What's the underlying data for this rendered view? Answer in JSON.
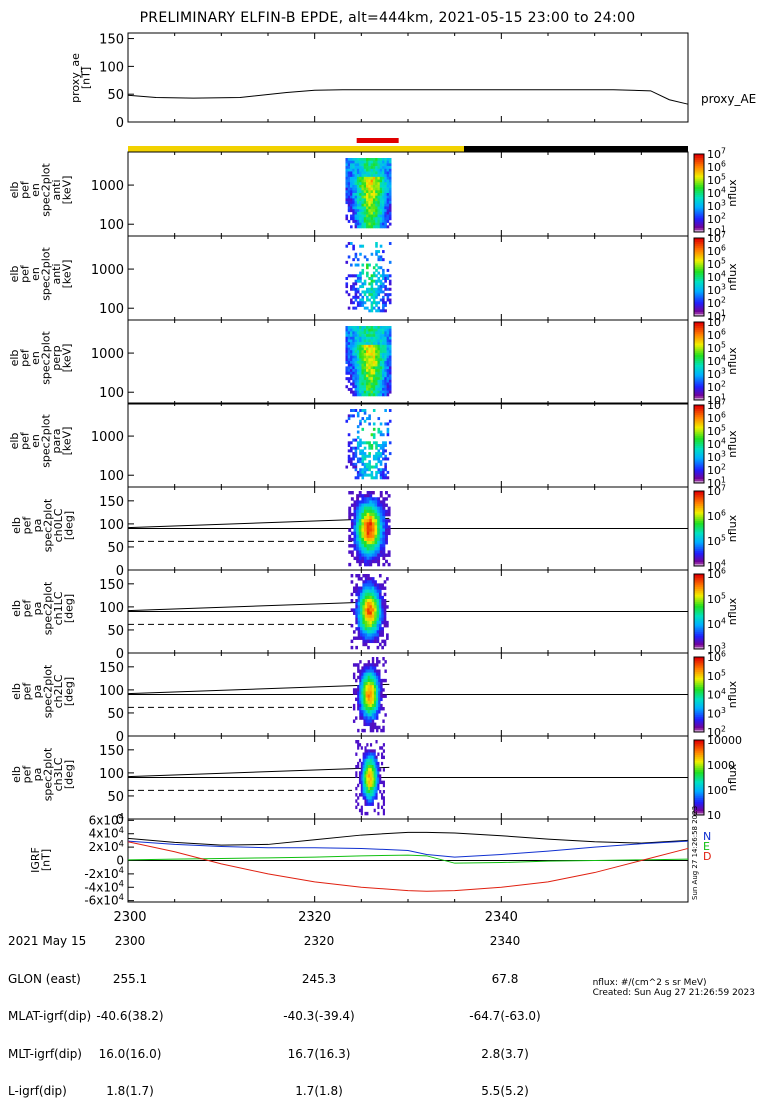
{
  "header": {
    "title": "PRELIMINARY ELFIN-B EPDE, alt=444km, 2021-05-15 23:00 to 24:00"
  },
  "chart_data": {
    "type": "heatmap",
    "x_tick_labels": [
      "2300",
      "2320",
      "2340"
    ],
    "colors": {
      "orbit_day": "#f2d200",
      "orbit_night": "#000000",
      "science_zone": "#e00000",
      "grf_x": "#1030d0",
      "grf_y": "#10c010",
      "grf_z": "#e02010",
      "grf_total": "#000000"
    },
    "ae_panel": {
      "ylabel": "proxy_ae\n[nT]",
      "yticks": [
        "150",
        "100",
        "50",
        "0"
      ],
      "ylim": [
        0,
        160
      ],
      "series_label": "proxy_AE",
      "x_minutes": [
        0,
        3,
        7,
        12,
        17,
        20,
        23,
        30,
        40,
        50,
        52,
        56,
        58,
        60
      ],
      "values": [
        48,
        44,
        43,
        44,
        53,
        57,
        58,
        58,
        58,
        58,
        58,
        56,
        40,
        32
      ]
    },
    "spectra_panels": [
      {
        "ylabel": "elb\npef\nen\nspec2plot\nanti\n[keV]",
        "yticks": [
          "1000",
          "100"
        ],
        "cbar_ticks": [
          "10^7",
          "10^6",
          "10^5",
          "10^4",
          "10^3",
          "10^2",
          "10^1"
        ],
        "cbar_label": "nflux"
      },
      {
        "ylabel": "elb\npef\nen\nspec2plot\nanti\n[keV]",
        "yticks": [
          "1000",
          "100"
        ],
        "cbar_ticks": [
          "10^7",
          "10^6",
          "10^5",
          "10^4",
          "10^3",
          "10^2",
          "10^1"
        ],
        "cbar_label": "nflux"
      },
      {
        "ylabel": "elb\npef\nen\nspec2plot\nperp\n[keV]",
        "yticks": [
          "1000",
          "100"
        ],
        "cbar_ticks": [
          "10^7",
          "10^6",
          "10^5",
          "10^4",
          "10^3",
          "10^2",
          "10^1"
        ],
        "cbar_label": "nflux"
      },
      {
        "ylabel": "elb\npef\nen\nspec2plot\npara\n[keV]",
        "yticks": [
          "1000",
          "100"
        ],
        "cbar_ticks": [
          "10^7",
          "10^6",
          "10^5",
          "10^4",
          "10^3",
          "10^2",
          "10^1"
        ],
        "cbar_label": "nflux"
      }
    ],
    "pa_panels": [
      {
        "ylabel": "elb\npef\npa\nspec2plot\nch0LC\n[deg]",
        "yticks": [
          "150",
          "100",
          "50",
          "0"
        ],
        "cbar_ticks": [
          "10^7",
          "10^6",
          "10^5",
          "10^4"
        ],
        "cbar_label": "nflux"
      },
      {
        "ylabel": "elb\npef\npa\nspec2plot\nch1LC\n[deg]",
        "yticks": [
          "150",
          "100",
          "50",
          "0"
        ],
        "cbar_ticks": [
          "10^6",
          "10^5",
          "10^4",
          "10^3"
        ],
        "cbar_label": "nflux"
      },
      {
        "ylabel": "elb\npef\npa\nspec2plot\nch2LC\n[deg]",
        "yticks": [
          "150",
          "100",
          "50",
          "0"
        ],
        "cbar_ticks": [
          "10^6",
          "10^5",
          "10^4",
          "10^3",
          "10^2"
        ],
        "cbar_label": "nflux"
      },
      {
        "ylabel": "elb\npef\npa\nspec2plot\nch3LC\n[deg]",
        "yticks": [
          "150",
          "100",
          "50",
          "0"
        ],
        "cbar_ticks": [
          "10000",
          "1000",
          "100",
          "10"
        ],
        "cbar_label": "nflux"
      }
    ],
    "grf_panel": {
      "ylabel": "IGRF\n[nT]",
      "yticks": [
        "6x10^4",
        "4x10^4",
        "2x10^4",
        "0",
        "-2x10^4",
        "-4x10^4",
        "-6x10^4"
      ],
      "ylim": [
        -62000,
        62000
      ],
      "legend": [
        "N",
        "E",
        "D"
      ],
      "x_minutes": [
        0,
        5,
        10,
        15,
        20,
        25,
        30,
        32,
        35,
        40,
        45,
        50,
        55,
        60
      ],
      "total": [
        33000,
        27000,
        23000,
        24000,
        31000,
        38000,
        42000,
        42000,
        41000,
        37000,
        32000,
        28000,
        26000,
        30000
      ],
      "x_comp": [
        29000,
        24000,
        21000,
        19000,
        19000,
        18000,
        15000,
        9000,
        5000,
        9000,
        14000,
        20000,
        25000,
        29000
      ],
      "y_comp": [
        1000,
        2000,
        3000,
        4000,
        5000,
        7000,
        8000,
        7000,
        -4000,
        -3000,
        -1000,
        0,
        1000,
        2000
      ],
      "z_comp": [
        28000,
        13000,
        -5000,
        -20000,
        -32000,
        -40000,
        -45000,
        -46000,
        -45000,
        -40000,
        -32000,
        -18000,
        0,
        18000
      ]
    },
    "ephemeris": {
      "labels": [
        "2021 May 15",
        "GLON (east)",
        "MLAT-igrf(dip)",
        "MLT-igrf(dip)",
        "L-igrf(dip)"
      ],
      "columns": [
        [
          "2300",
          "255.1",
          "-40.6(38.2)",
          "16.0(16.0)",
          "1.8(1.7)"
        ],
        [
          "2320",
          "245.3",
          "-40.3(-39.4)",
          "16.7(16.3)",
          "1.7(1.8)"
        ],
        [
          "2340",
          "67.8",
          "-64.7(-63.0)",
          "2.8(3.7)",
          "5.5(5.2)"
        ]
      ]
    },
    "credit": [
      "nflux: #/(cm^2 s sr MeV)",
      "Created: Sun Aug 27 21:26:59 2023"
    ],
    "side_stamp": "Sun Aug 27 14:26:58 2023"
  }
}
